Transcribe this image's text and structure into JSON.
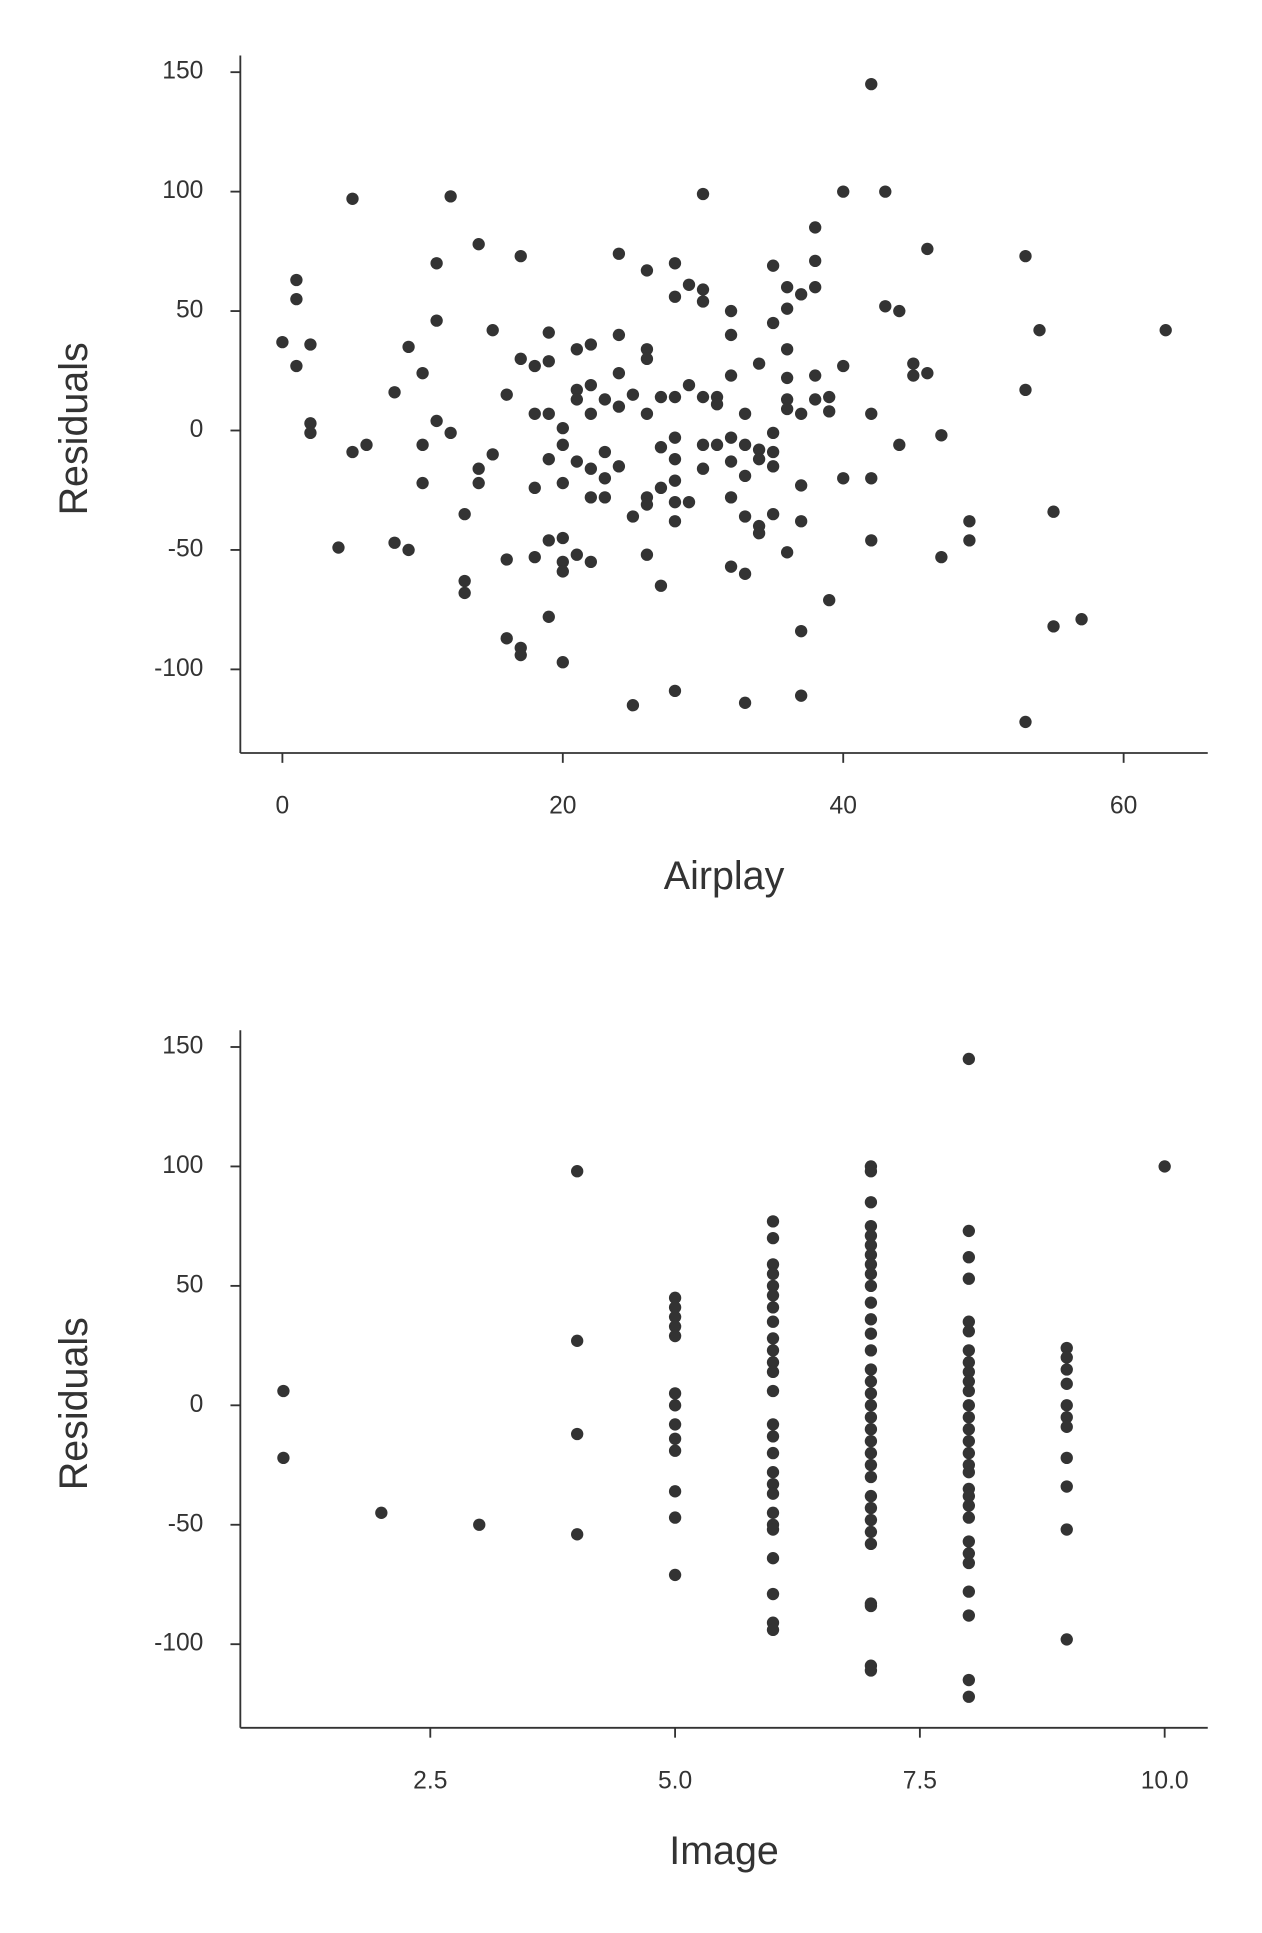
{
  "chart_data": [
    {
      "type": "scatter",
      "xlabel": "Airplay",
      "ylabel": "Residuals",
      "color": "#333333",
      "xlim": [
        -3,
        66
      ],
      "ylim": [
        -135,
        157
      ],
      "xticks": [
        0,
        20,
        40,
        60
      ],
      "yticks": [
        -100,
        -50,
        0,
        50,
        100,
        150
      ],
      "x": [
        0,
        1,
        1,
        1,
        2,
        2,
        2,
        4,
        5,
        5,
        6,
        8,
        8,
        9,
        9,
        10,
        10,
        10,
        11,
        11,
        11,
        12,
        12,
        13,
        13,
        13,
        14,
        14,
        14,
        15,
        15,
        16,
        16,
        16,
        17,
        17,
        17,
        17,
        18,
        18,
        18,
        18,
        19,
        19,
        19,
        19,
        19,
        19,
        20,
        20,
        20,
        20,
        20,
        20,
        20,
        21,
        21,
        21,
        21,
        21,
        22,
        22,
        22,
        22,
        22,
        22,
        23,
        23,
        23,
        23,
        24,
        24,
        24,
        24,
        24,
        25,
        25,
        25,
        26,
        26,
        26,
        26,
        26,
        26,
        26,
        27,
        27,
        27,
        27,
        28,
        28,
        28,
        28,
        28,
        28,
        28,
        28,
        28,
        29,
        29,
        29,
        30,
        30,
        30,
        30,
        30,
        30,
        31,
        31,
        31,
        32,
        32,
        32,
        32,
        32,
        32,
        32,
        33,
        33,
        33,
        33,
        33,
        33,
        34,
        34,
        34,
        34,
        34,
        35,
        35,
        35,
        35,
        35,
        35,
        36,
        36,
        36,
        36,
        36,
        36,
        36,
        37,
        37,
        37,
        37,
        37,
        37,
        38,
        38,
        38,
        38,
        38,
        39,
        39,
        39,
        40,
        40,
        40,
        42,
        42,
        42,
        42,
        43,
        43,
        44,
        44,
        45,
        45,
        46,
        46,
        47,
        47,
        49,
        49,
        53,
        53,
        53,
        54,
        55,
        55,
        57,
        63
      ],
      "values": [
        37,
        63,
        55,
        27,
        36,
        3,
        -1,
        -49,
        97,
        -9,
        -6,
        16,
        -47,
        35,
        -50,
        24,
        -6,
        -22,
        70,
        46,
        4,
        98,
        -1,
        -35,
        -63,
        -68,
        78,
        -16,
        -22,
        42,
        -10,
        15,
        -54,
        -87,
        73,
        30,
        -91,
        -94,
        27,
        7,
        -24,
        -53,
        41,
        29,
        7,
        -12,
        -46,
        -78,
        1,
        -6,
        -22,
        -45,
        -55,
        -59,
        -97,
        34,
        17,
        13,
        -13,
        -52,
        36,
        19,
        7,
        -16,
        -28,
        -55,
        13,
        -9,
        -20,
        -28,
        74,
        40,
        24,
        10,
        -15,
        15,
        -36,
        -115,
        67,
        34,
        30,
        7,
        -28,
        -31,
        -52,
        14,
        -7,
        -24,
        -65,
        70,
        56,
        14,
        -3,
        -12,
        -21,
        -30,
        -38,
        -109,
        61,
        19,
        -30,
        99,
        59,
        54,
        14,
        -6,
        -16,
        14,
        11,
        -6,
        50,
        40,
        23,
        -3,
        -13,
        -28,
        -57,
        7,
        -6,
        -19,
        -36,
        -60,
        -114,
        28,
        -8,
        -12,
        -40,
        -43,
        69,
        45,
        -1,
        -9,
        -15,
        -35,
        60,
        51,
        34,
        22,
        13,
        9,
        -51,
        57,
        7,
        -23,
        -38,
        -84,
        -111,
        85,
        71,
        60,
        23,
        13,
        14,
        8,
        -71,
        100,
        27,
        -20,
        145,
        7,
        -20,
        -46,
        100,
        52,
        50,
        -6,
        28,
        23,
        76,
        24,
        -2,
        -53,
        -38,
        -46,
        73,
        17,
        -122,
        42,
        -34,
        -82,
        -79,
        42
      ]
    },
    {
      "type": "scatter",
      "xlabel": "Image",
      "ylabel": "Residuals",
      "color": "#333333",
      "xlim": [
        0.56,
        10.44
      ],
      "ylim": [
        -135,
        157
      ],
      "xticks": [
        2.5,
        {
          "value": 5,
          "label": "5.0"
        },
        7.5,
        {
          "value": 10,
          "label": "10.0"
        }
      ],
      "yticks": [
        -100,
        -50,
        0,
        50,
        100,
        150
      ],
      "x": [
        1,
        1,
        2,
        3,
        4,
        4,
        4,
        4,
        5,
        5,
        5,
        5,
        5,
        5,
        5,
        5,
        5,
        5,
        5,
        5,
        5,
        6,
        6,
        6,
        6,
        6,
        6,
        6,
        6,
        6,
        6,
        6,
        6,
        6,
        6,
        6,
        6,
        6,
        6,
        6,
        6,
        6,
        6,
        6,
        6,
        6,
        6,
        7,
        7,
        7,
        7,
        7,
        7,
        7,
        7,
        7,
        7,
        7,
        7,
        7,
        7,
        7,
        7,
        7,
        7,
        7,
        7,
        7,
        7,
        7,
        7,
        7,
        7,
        7,
        7,
        7,
        7,
        7,
        7,
        7,
        8,
        8,
        8,
        8,
        8,
        8,
        8,
        8,
        8,
        8,
        8,
        8,
        8,
        8,
        8,
        8,
        8,
        8,
        8,
        8,
        8,
        8,
        8,
        8,
        8,
        8,
        8,
        8,
        8,
        9,
        9,
        9,
        9,
        9,
        9,
        9,
        9,
        9,
        9,
        9,
        10
      ],
      "values": [
        6,
        -22,
        -45,
        -50,
        98,
        27,
        -12,
        -54,
        45,
        41,
        37,
        33,
        29,
        5,
        0,
        -8,
        -14,
        -19,
        -36,
        -47,
        -71,
        77,
        70,
        59,
        55,
        50,
        46,
        41,
        35,
        28,
        23,
        18,
        14,
        6,
        -8,
        -13,
        -20,
        -28,
        -33,
        -37,
        -45,
        -50,
        -52,
        -64,
        -79,
        -91,
        -94,
        100,
        98,
        85,
        75,
        71,
        67,
        63,
        59,
        55,
        50,
        43,
        36,
        30,
        23,
        15,
        10,
        5,
        0,
        -5,
        -10,
        -15,
        -20,
        -25,
        -30,
        -38,
        -43,
        -48,
        -53,
        -58,
        -83,
        -84,
        -109,
        -111,
        145,
        73,
        62,
        53,
        35,
        31,
        23,
        18,
        14,
        10,
        6,
        0,
        -5,
        -10,
        -15,
        -20,
        -25,
        -28,
        -35,
        -38,
        -42,
        -47,
        -57,
        -62,
        -66,
        -78,
        -88,
        -115,
        -122,
        24,
        20,
        15,
        9,
        0,
        -5,
        -9,
        -22,
        -34,
        -52,
        -98,
        100
      ]
    }
  ]
}
